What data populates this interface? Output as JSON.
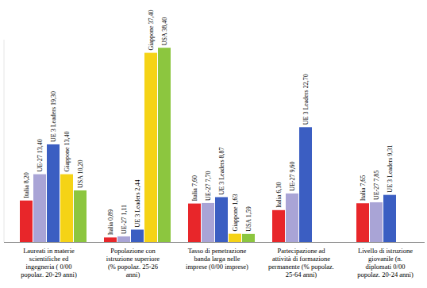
{
  "chart_data": {
    "type": "bar",
    "categories": [
      "Laureati in materie scientifiche ed ingegneria ( 0/00 popolaz. 20-29 anni)",
      "Popolazione con istruzione superiore (% popolaz. 25-26 anni)",
      "Tasso di penetrazione banda larga nelle imprese (0/00 imprese)",
      "Partecipazione ad attività di formazione permanente (% popolaz. 25-64 anni)",
      "Livello di istruzione giovanile (n. diplomati 0/00 popolaz. 20-24 anni)"
    ],
    "series": [
      {
        "name": "Italia",
        "color": "#e8262a",
        "values": [
          8.2,
          0.89,
          7.6,
          6.3,
          7.65
        ],
        "value_labels": [
          "8,20",
          "0,89",
          "7,60",
          "6,30",
          "7,65"
        ]
      },
      {
        "name": "UE-27",
        "color": "#a9a4d6",
        "values": [
          13.4,
          1.11,
          7.7,
          9.6,
          7.85
        ],
        "value_labels": [
          "13,40",
          "1,11",
          "7,70",
          "9,60",
          "7,85"
        ]
      },
      {
        "name": "UE 3 Leaders",
        "color": "#3b5ec2",
        "values": [
          19.3,
          2.44,
          8.87,
          22.7,
          9.31
        ],
        "value_labels": [
          "19,30",
          "2,44",
          "8,87",
          "22,70",
          "9,31"
        ]
      },
      {
        "name": "Giappone",
        "color": "#f5d316",
        "values": [
          13.4,
          37.4,
          1.63,
          null,
          null
        ],
        "value_labels": [
          "13,40",
          "37,40",
          "1,63",
          null,
          null
        ]
      },
      {
        "name": "USA",
        "color": "#8cc63f",
        "values": [
          10.2,
          38.4,
          1.59,
          null,
          null
        ],
        "value_labels": [
          "10,20",
          "38,40",
          "1,59",
          null,
          null
        ]
      }
    ],
    "ylim": [
      0,
      40
    ],
    "data_labels": true,
    "tick_labels": "x",
    "grid": false
  }
}
